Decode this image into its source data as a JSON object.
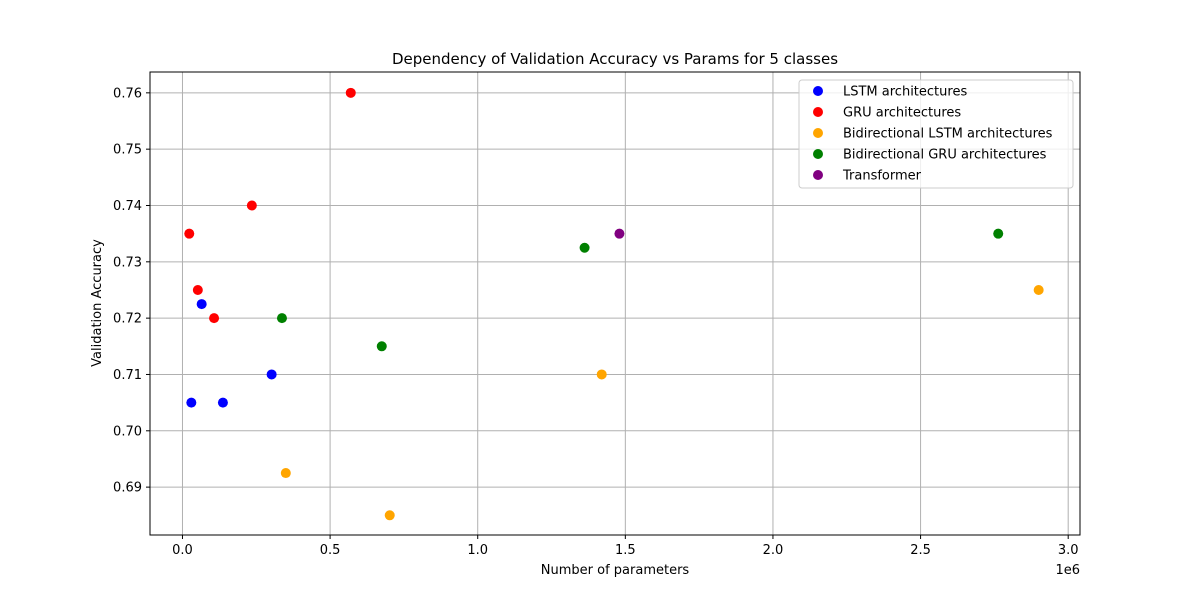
{
  "chart_data": {
    "type": "scatter",
    "title": "Dependency of Validation Accuracy vs Params for 5 classes",
    "xlabel": "Number of parameters",
    "ylabel": "Validation Accuracy",
    "x_offset_label": "1e6",
    "x_scale_factor": 1000000,
    "xlim": [
      -110000,
      3040000
    ],
    "ylim": [
      0.6815,
      0.7637
    ],
    "x_ticks": [
      0,
      500000,
      1000000,
      1500000,
      2000000,
      2500000,
      3000000
    ],
    "x_tick_labels": [
      "0.0",
      "0.5",
      "1.0",
      "1.5",
      "2.0",
      "2.5",
      "3.0"
    ],
    "y_ticks": [
      0.69,
      0.7,
      0.71,
      0.72,
      0.73,
      0.74,
      0.75,
      0.76
    ],
    "y_tick_labels": [
      "0.69",
      "0.70",
      "0.71",
      "0.72",
      "0.73",
      "0.74",
      "0.75",
      "0.76"
    ],
    "grid": true,
    "legend_position": "top-right",
    "series": [
      {
        "name": "LSTM architectures",
        "color": "#0000ff",
        "points": [
          {
            "x": 30000,
            "y": 0.705
          },
          {
            "x": 65000,
            "y": 0.7225
          },
          {
            "x": 137000,
            "y": 0.705
          },
          {
            "x": 302000,
            "y": 0.71
          }
        ]
      },
      {
        "name": "GRU architectures",
        "color": "#ff0000",
        "points": [
          {
            "x": 23000,
            "y": 0.735
          },
          {
            "x": 52000,
            "y": 0.725
          },
          {
            "x": 107000,
            "y": 0.72
          },
          {
            "x": 235000,
            "y": 0.74
          },
          {
            "x": 570000,
            "y": 0.76
          }
        ]
      },
      {
        "name": "Bidirectional LSTM architectures",
        "color": "#ffa500",
        "points": [
          {
            "x": 350000,
            "y": 0.6925
          },
          {
            "x": 702000,
            "y": 0.685
          },
          {
            "x": 1420000,
            "y": 0.71
          },
          {
            "x": 2900000,
            "y": 0.725
          }
        ]
      },
      {
        "name": "Bidirectional GRU architectures",
        "color": "#008000",
        "points": [
          {
            "x": 337000,
            "y": 0.72
          },
          {
            "x": 675000,
            "y": 0.715
          },
          {
            "x": 1362000,
            "y": 0.7325
          },
          {
            "x": 2763000,
            "y": 0.735
          }
        ]
      },
      {
        "name": "Transformer",
        "color": "#800080",
        "points": [
          {
            "x": 1480000,
            "y": 0.735
          }
        ]
      }
    ]
  }
}
